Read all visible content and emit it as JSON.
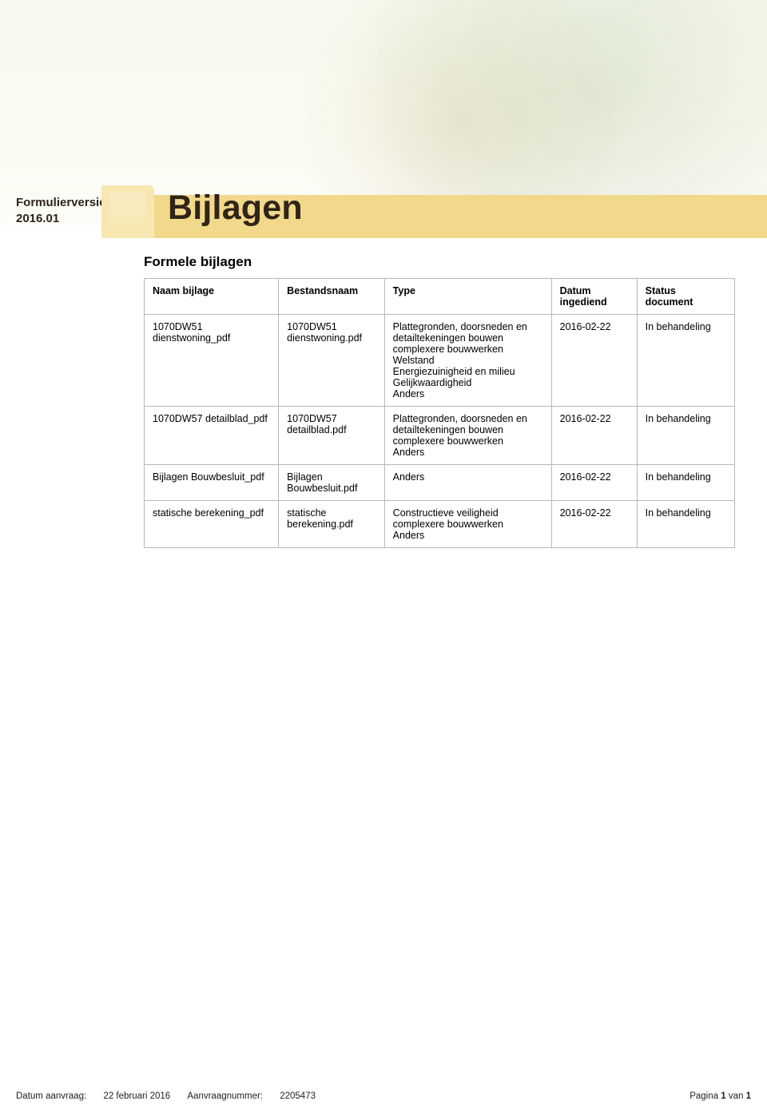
{
  "versie": {
    "label": "Formulierversie",
    "value": "2016.01"
  },
  "heading": "Bijlagen",
  "section_title": "Formele bijlagen",
  "columns": {
    "name": "Naam bijlage",
    "file": "Bestandsnaam",
    "type": "Type",
    "date": "Datum ingediend",
    "status": "Status document"
  },
  "rows": [
    {
      "name": "1070DW51 dienstwoning_pdf",
      "file": "1070DW51 dienstwoning.pdf",
      "type": "Plattegronden, doorsneden en detailtekeningen bouwen complexere bouwwerken\nWelstand\nEnergiezuinigheid en milieu\nGelijkwaardigheid\nAnders",
      "date": "2016-02-22",
      "status": "In behandeling"
    },
    {
      "name": "1070DW57 detailblad_pdf",
      "file": "1070DW57 detailblad.pdf",
      "type": "Plattegronden, doorsneden en detailtekeningen bouwen complexere bouwwerken\nAnders",
      "date": "2016-02-22",
      "status": "In behandeling"
    },
    {
      "name": "Bijlagen Bouwbesluit_pdf",
      "file": "Bijlagen Bouwbesluit.pdf",
      "type": "Anders",
      "date": "2016-02-22",
      "status": "In behandeling"
    },
    {
      "name": "statische berekening_pdf",
      "file": "statische berekening.pdf",
      "type": "Constructieve veiligheid complexere bouwwerken\nAnders",
      "date": "2016-02-22",
      "status": "In behandeling"
    }
  ],
  "footer": {
    "datum_label": "Datum aanvraag:",
    "datum_value": "22 februari 2016",
    "aanvraag_label": "Aanvraagnummer:",
    "aanvraag_value": "2205473",
    "pagina_prefix": "Pagina",
    "pagina_current": "1",
    "pagina_sep": "van",
    "pagina_total": "1"
  },
  "colors": {
    "band": "#f2d88a",
    "tab": "#f7e7b0",
    "heading_text": "#2f2417",
    "border": "#b8b8b8"
  }
}
